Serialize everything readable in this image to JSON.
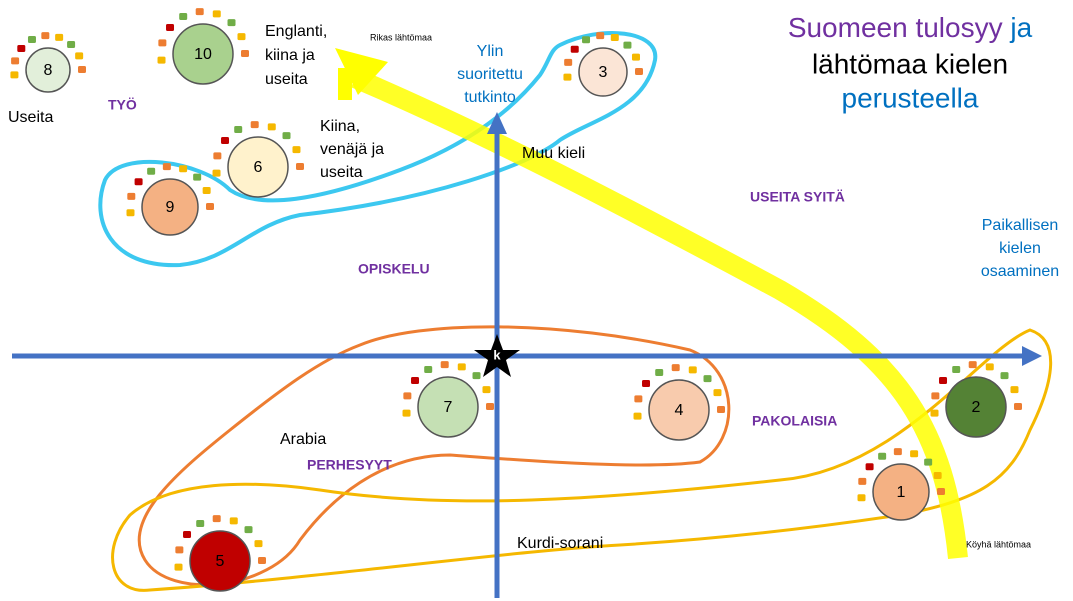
{
  "title": {
    "part1": "Suomeen tulosyy",
    "part2": "ja",
    "line2": "lähtömaa kielen",
    "line3": "perusteella"
  },
  "y_axis_label": [
    "Ylin",
    "suoritettu",
    "tutkinto"
  ],
  "x_axis_label": [
    "Paikallisen",
    "kielen",
    "osaaminen"
  ],
  "rich": "Rikas lähtömaa",
  "poor": "Köyhä lähtömaa",
  "origin": "k",
  "groups": [
    "TYÖ",
    "OPISKELU",
    "USEITA SYITÄ",
    "PAKOLAISIA",
    "PERHESYYT"
  ],
  "languages": [
    [
      "Useita"
    ],
    [
      "Englanti,",
      "kiina ja",
      "useita"
    ],
    [
      "Kiina,",
      "venäjä ja",
      "useita"
    ],
    [
      "Muu kieli"
    ],
    [
      "Arabia"
    ],
    [
      "Kurdi-sorani"
    ]
  ],
  "nodes": [
    {
      "label": "8",
      "color": "#e2efda"
    },
    {
      "label": "10",
      "color": "#a9d18e"
    },
    {
      "label": "3",
      "color": "#fbe5d6"
    },
    {
      "label": "6",
      "color": "#fff2cc"
    },
    {
      "label": "9",
      "color": "#f4b183"
    },
    {
      "label": "7",
      "color": "#c5e0b4"
    },
    {
      "label": "4",
      "color": "#f8cbad"
    },
    {
      "label": "2",
      "color": "#548235"
    },
    {
      "label": "1",
      "color": "#f4b183"
    },
    {
      "label": "5",
      "color": "#c00000"
    }
  ]
}
